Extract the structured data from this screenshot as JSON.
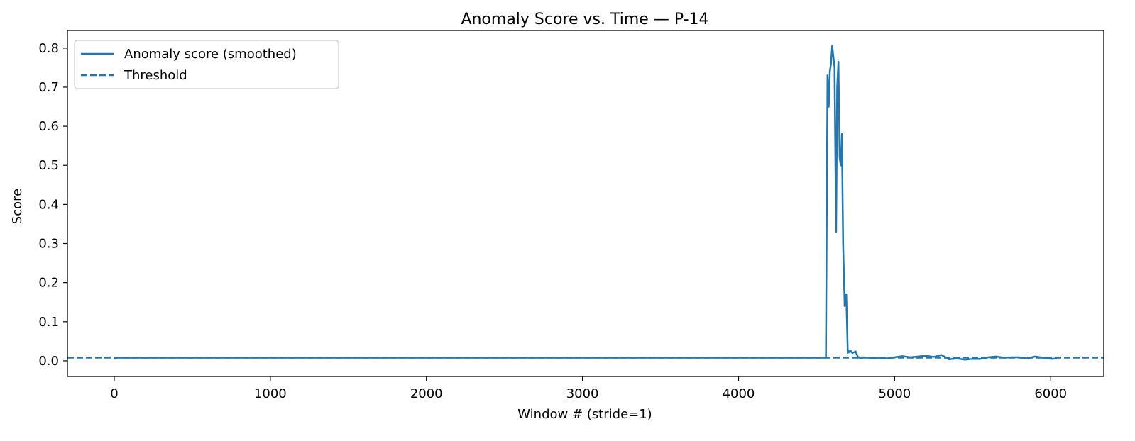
{
  "chart_data": {
    "type": "line",
    "title": "Anomaly Score vs. Time — P-14",
    "xlabel": "Window # (stride=1)",
    "ylabel": "Score",
    "xlim": [
      -300,
      6340
    ],
    "ylim": [
      -0.04,
      0.845
    ],
    "xticks": [
      0,
      1000,
      2000,
      3000,
      4000,
      5000,
      6000
    ],
    "yticks": [
      0.0,
      0.1,
      0.2,
      0.3,
      0.4,
      0.5,
      0.6,
      0.7,
      0.8
    ],
    "ytick_labels": [
      "0.0",
      "0.1",
      "0.2",
      "0.3",
      "0.4",
      "0.5",
      "0.6",
      "0.7",
      "0.8"
    ],
    "grid": false,
    "legend_position": "upper-left",
    "colors": {
      "line": "#1f77b4"
    },
    "series": [
      {
        "name": "Anomaly score (smoothed)",
        "style": "solid",
        "x": [
          0,
          10,
          1000,
          2000,
          3000,
          4000,
          4560,
          4570,
          4578,
          4585,
          4592,
          4600,
          4607,
          4615,
          4625,
          4632,
          4640,
          4648,
          4655,
          4662,
          4670,
          4680,
          4690,
          4700,
          4707,
          4712,
          4718,
          4722,
          4730,
          4740,
          4750,
          4765,
          4780,
          4800,
          4830,
          4860,
          4900,
          4950,
          5000,
          5050,
          5100,
          5150,
          5200,
          5250,
          5300,
          5350,
          5400,
          5450,
          5500,
          5550,
          5600,
          5650,
          5700,
          5750,
          5800,
          5850,
          5900,
          5950,
          6000,
          6040
        ],
        "y": [
          0.005,
          0.008,
          0.008,
          0.008,
          0.008,
          0.008,
          0.008,
          0.73,
          0.65,
          0.74,
          0.76,
          0.805,
          0.78,
          0.75,
          0.33,
          0.7,
          0.765,
          0.52,
          0.5,
          0.58,
          0.3,
          0.14,
          0.17,
          0.02,
          0.025,
          0.022,
          0.025,
          0.024,
          0.02,
          0.022,
          0.024,
          0.01,
          0.006,
          0.009,
          0.008,
          0.007,
          0.008,
          0.006,
          0.009,
          0.012,
          0.009,
          0.011,
          0.013,
          0.01,
          0.015,
          0.004,
          0.006,
          0.003,
          0.005,
          0.005,
          0.009,
          0.011,
          0.008,
          0.009,
          0.009,
          0.006,
          0.011,
          0.008,
          0.005,
          0.006
        ]
      },
      {
        "name": "Threshold",
        "style": "dashed",
        "value": 0.008
      }
    ]
  }
}
